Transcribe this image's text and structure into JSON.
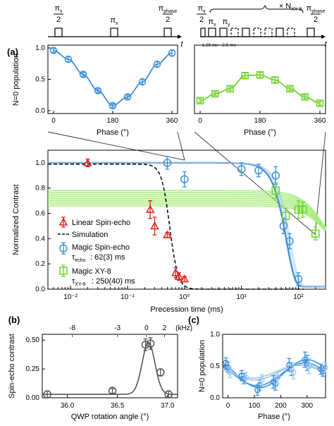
{
  "panel_labels": {
    "a": "(a)",
    "b": "(b)",
    "c": "(c)"
  },
  "pulses": {
    "left": {
      "half_num": "π",
      "half_sub": "x",
      "half_den": "2",
      "pi_num": "π",
      "pi_sub": "x",
      "phase_num": "π",
      "phase_sub": "phase",
      "phase_den": "2",
      "t": "t"
    },
    "right": {
      "half_num": "π",
      "half_sub": "x",
      "half_den": "2",
      "pi_x": "π",
      "pi_x_sub": "x",
      "pi_y": "π",
      "pi_y_sub": "y",
      "repeat": "× N",
      "repeat_sub": "XY-8",
      "d1": "1.25 ms",
      "d2": "2.5 ms",
      "phase_num": "π",
      "phase_sub": "phase",
      "phase_den": "2",
      "t": "t"
    }
  },
  "colors": {
    "blue": "#3d8fd6",
    "blue_light": "#9cc8ee",
    "green": "#6ed42b",
    "green_light": "#a7ec7c",
    "red": "#e02020",
    "gray": "#555555",
    "axis_b_red": "#e02020"
  },
  "chart_data": [
    {
      "id": "a_top_left",
      "type": "line",
      "ylabel": "N=0 population",
      "xlabel": "Phase (°)",
      "xlim": [
        0,
        360
      ],
      "ylim": [
        0,
        1.0
      ],
      "xticks": [
        "0",
        "180",
        "360"
      ],
      "yticks": [
        "0.0",
        "0.5",
        "1.0"
      ],
      "series": [
        {
          "color": "blue",
          "x": [
            0,
            45,
            90,
            135,
            180,
            225,
            270,
            315,
            360
          ],
          "y": [
            0.96,
            0.82,
            0.58,
            0.32,
            0.08,
            0.22,
            0.46,
            0.74,
            0.92
          ],
          "err": [
            0.03,
            0.04,
            0.03,
            0.03,
            0.03,
            0.03,
            0.04,
            0.04,
            0.05
          ]
        }
      ]
    },
    {
      "id": "a_top_right",
      "type": "line",
      "xlabel": "Phase (°)",
      "xlim": [
        0,
        360
      ],
      "ylim": [
        0,
        1.0
      ],
      "xticks": [
        "0",
        "180",
        "360"
      ],
      "series": [
        {
          "color": "green",
          "x": [
            0,
            45,
            90,
            135,
            180,
            225,
            270,
            315,
            360
          ],
          "y": [
            0.16,
            0.27,
            0.35,
            0.56,
            0.57,
            0.49,
            0.35,
            0.22,
            0.12
          ],
          "err": [
            0.03,
            0.03,
            0.03,
            0.04,
            0.04,
            0.04,
            0.03,
            0.03,
            0.03
          ]
        }
      ]
    },
    {
      "id": "a_main",
      "type": "scatter",
      "ylabel": "Normalized Contrast",
      "xlabel": "Precession time (ms)",
      "xscale": "log",
      "xlim": [
        0.004,
        300
      ],
      "ylim": [
        0,
        1.1
      ],
      "xtick_labels": [
        "10⁻²",
        "10⁻¹",
        "10⁰",
        "10¹",
        "10²"
      ],
      "yticks": [
        "0.0",
        "0.2",
        "0.4",
        "0.6",
        "0.8",
        "1.0"
      ],
      "legend": [
        "Linear Spin-echo",
        "Simulation",
        "Magic Spin-echo",
        "τ",
        "echo",
        ": 62(3) ms",
        "Magic XY-8",
        "τ",
        "XY-8",
        ": 250(40) ms"
      ],
      "series": [
        {
          "name": "Linear Spin-echo",
          "color": "red",
          "marker": "triangle",
          "x": [
            0.02,
            0.25,
            0.3,
            0.5,
            0.7,
            0.8,
            1.0
          ],
          "y": [
            1.0,
            0.63,
            0.5,
            0.43,
            0.13,
            0.1,
            0.08
          ],
          "err": [
            0.03,
            0.07,
            0.07,
            0.02,
            0.04,
            0.03,
            0.02
          ]
        },
        {
          "name": "Magic Spin-echo",
          "color": "blue",
          "marker": "circle",
          "x": [
            0.5,
            1.0,
            10,
            20,
            40,
            55,
            70,
            100
          ],
          "y": [
            1.0,
            0.87,
            0.95,
            0.94,
            0.9,
            0.5,
            0.38,
            0.08
          ],
          "err": [
            0.05,
            0.06,
            0.05,
            0.05,
            0.07,
            0.06,
            0.06,
            0.05
          ]
        },
        {
          "name": "Magic XY-8",
          "color": "green",
          "marker": "square",
          "x": [
            40,
            60,
            100,
            120,
            200
          ],
          "y": [
            0.78,
            0.58,
            0.63,
            0.63,
            0.44
          ],
          "err": [
            0.06,
            0.06,
            0.07,
            0.06,
            0.05
          ]
        }
      ]
    },
    {
      "id": "b",
      "type": "scatter",
      "ylabel": "Spin-echo contrast",
      "xlabel": "QWP rotation angle (°)",
      "xlim": [
        35.75,
        37.1
      ],
      "ylim": [
        0,
        0.55
      ],
      "xticks": [
        "36.0",
        "36.5",
        "37.0"
      ],
      "yticks": [
        "0.00",
        "0.25",
        "0.50"
      ],
      "top_axis_label": "(kHz)",
      "top_ticks": [
        "-8",
        "-3",
        "0",
        "2"
      ],
      "series": [
        {
          "color": "gray",
          "x": [
            35.8,
            36.45,
            36.78,
            36.83,
            36.93,
            37.01
          ],
          "y": [
            0.03,
            0.06,
            0.46,
            0.47,
            0.22,
            0.03
          ],
          "err": [
            0.03,
            0.02,
            0.05,
            0.05,
            0.03,
            0.03
          ]
        }
      ]
    },
    {
      "id": "c",
      "type": "line",
      "ylabel": "N=0 population",
      "xlabel": "Phase (°)",
      "xlim": [
        -20,
        370
      ],
      "ylim": [
        0,
        1.0
      ],
      "xticks": [
        "0",
        "100",
        "200",
        "300"
      ],
      "yticks": [
        "0.0",
        "0.5",
        "1.0"
      ],
      "series": [
        {
          "color": "blue",
          "x": [
            0,
            60,
            120,
            180,
            240,
            300,
            360
          ],
          "y": [
            0.55,
            0.35,
            0.12,
            0.25,
            0.52,
            0.6,
            0.45
          ],
          "err": [
            0.08,
            0.08,
            0.08,
            0.1,
            0.1,
            0.12,
            0.08
          ]
        },
        {
          "color": "blue",
          "x": [
            0,
            60,
            120,
            180,
            240,
            300,
            360
          ],
          "y": [
            0.48,
            0.3,
            0.2,
            0.22,
            0.45,
            0.55,
            0.42
          ],
          "err": [
            0.08,
            0.08,
            0.08,
            0.1,
            0.1,
            0.12,
            0.08
          ]
        },
        {
          "color": "blue_light",
          "x": [
            0,
            60,
            120,
            180,
            240,
            300,
            360
          ],
          "y": [
            0.4,
            0.32,
            0.28,
            0.32,
            0.4,
            0.5,
            0.48
          ],
          "err": [
            0.08,
            0.08,
            0.08,
            0.1,
            0.1,
            0.12,
            0.08
          ]
        }
      ]
    }
  ]
}
